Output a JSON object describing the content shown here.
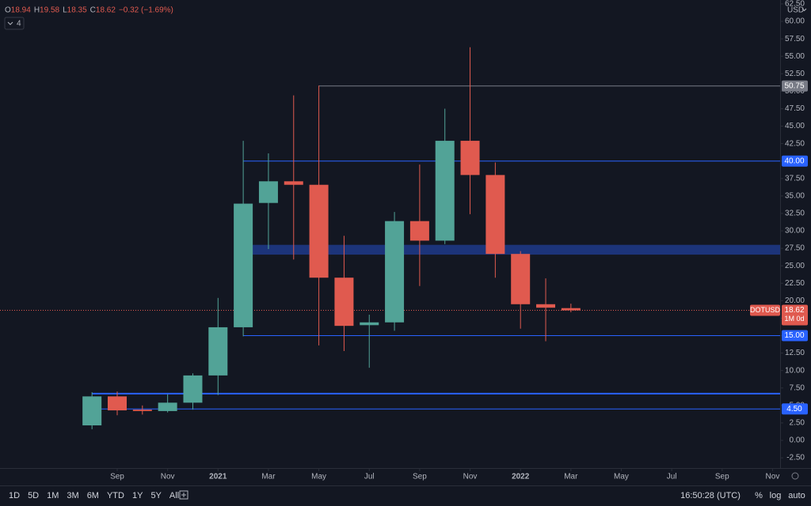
{
  "chart_data": {
    "type": "candlestick",
    "symbol": "DOTUSD",
    "interval": "1M 0d",
    "currency": "USD",
    "indicator_count": "4",
    "header": [
      {
        "k": "O",
        "v": "18.94"
      },
      {
        "k": "H",
        "v": "19.58"
      },
      {
        "k": "L",
        "v": "18.35"
      },
      {
        "k": "C",
        "v": "18.62"
      }
    ],
    "header_change": "−0.32 (−1.69%)",
    "x": [
      0,
      1,
      2,
      3,
      4,
      5,
      6,
      7,
      8,
      9,
      10,
      11,
      12,
      13,
      14,
      15,
      16,
      17,
      18,
      19
    ],
    "open": [
      2.15,
      6.3,
      4.4,
      4.2,
      5.4,
      9.3,
      16.2,
      34.0,
      37.1,
      36.6,
      23.3,
      16.5,
      16.9,
      31.4,
      28.6,
      42.9,
      38.0,
      26.7,
      19.5,
      18.94
    ],
    "high": [
      6.9,
      7.0,
      5.0,
      6.6,
      9.6,
      20.4,
      42.9,
      41.1,
      49.4,
      50.8,
      29.3,
      18.0,
      32.7,
      39.5,
      47.5,
      56.3,
      39.8,
      27.1,
      23.2,
      19.58
    ],
    "low": [
      1.6,
      3.6,
      3.7,
      4.0,
      4.4,
      6.5,
      14.9,
      27.4,
      25.9,
      13.6,
      12.8,
      10.4,
      15.7,
      22.1,
      28.1,
      32.4,
      23.3,
      16.0,
      14.2,
      18.35
    ],
    "close": [
      6.3,
      4.3,
      4.2,
      5.4,
      9.3,
      16.2,
      33.9,
      37.1,
      36.6,
      23.3,
      16.4,
      16.9,
      31.4,
      28.6,
      42.9,
      38.0,
      26.7,
      19.5,
      19.0,
      18.62
    ],
    "up_color": "#52a397",
    "down_color": "#e05a4f",
    "last_price": 18.62,
    "levels": [
      {
        "value": 50.75,
        "start": 9,
        "color": "#787b86",
        "label": "50.75"
      },
      {
        "value": 40,
        "start": 6,
        "color": "#2962ff",
        "label": "40.00"
      },
      {
        "value": 15,
        "start": 6,
        "color": "#2962ff",
        "label": "15.00"
      },
      {
        "value": 4.5,
        "start": 0,
        "color": "#2962ff",
        "label": "4.50"
      },
      {
        "value": 6.7,
        "start": 0,
        "color": "#2962ff"
      }
    ],
    "zone": {
      "low": 26.6,
      "high": 28.0,
      "start": 6,
      "color": "#1e3a8a"
    },
    "xlim": [
      -3.65,
      27.3
    ],
    "ylim": [
      -3.96,
      63.06
    ],
    "xticks": [
      {
        "value": 1,
        "label": "Sep"
      },
      {
        "value": 3,
        "label": "Nov"
      },
      {
        "value": 5,
        "label": "2021"
      },
      {
        "value": 7,
        "label": "Mar"
      },
      {
        "value": 9,
        "label": "May"
      },
      {
        "value": 11,
        "label": "Jul"
      },
      {
        "value": 13,
        "label": "Sep"
      },
      {
        "value": 15,
        "label": "Nov"
      },
      {
        "value": 17,
        "label": "2022"
      },
      {
        "value": 19,
        "label": "Mar"
      },
      {
        "value": 21,
        "label": "May"
      },
      {
        "value": 23,
        "label": "Jul"
      },
      {
        "value": 25,
        "label": "Sep"
      },
      {
        "value": 27,
        "label": "Nov"
      }
    ],
    "yticks": [
      {
        "value": -2.5,
        "label": "-2.50"
      },
      {
        "value": 0,
        "label": "0.00"
      },
      {
        "value": 2.5,
        "label": "2.50"
      },
      {
        "value": 5,
        "label": "5.00"
      },
      {
        "value": 7.5,
        "label": "7.50"
      },
      {
        "value": 10,
        "label": "10.00"
      },
      {
        "value": 12.5,
        "label": "12.50"
      },
      {
        "value": 15,
        "label": "15.00"
      },
      {
        "value": 17.5,
        "label": "17.50"
      },
      {
        "value": 20,
        "label": "20.00"
      },
      {
        "value": 22.5,
        "label": "22.50"
      },
      {
        "value": 25,
        "label": "25.00"
      },
      {
        "value": 27.5,
        "label": "27.50"
      },
      {
        "value": 30,
        "label": "30.00"
      },
      {
        "value": 32.5,
        "label": "32.50"
      },
      {
        "value": 35,
        "label": "35.00"
      },
      {
        "value": 37.5,
        "label": "37.50"
      },
      {
        "value": 40,
        "label": "40.00"
      },
      {
        "value": 42.5,
        "label": "42.50"
      },
      {
        "value": 45,
        "label": "45.00"
      },
      {
        "value": 47.5,
        "label": "47.50"
      },
      {
        "value": 50,
        "label": "50.00"
      },
      {
        "value": 52.5,
        "label": "52.50"
      },
      {
        "value": 55,
        "label": "55.00"
      },
      {
        "value": 57.5,
        "label": "57.50"
      },
      {
        "value": 60,
        "label": "60.00"
      },
      {
        "value": 62.5,
        "label": "62.50"
      }
    ],
    "grid": false
  },
  "toolbar": {
    "ranges": [
      "1D",
      "5D",
      "1M",
      "3M",
      "6M",
      "YTD",
      "1Y",
      "5Y",
      "All"
    ],
    "time": "16:50:28 (UTC)",
    "options": [
      "%",
      "log",
      "auto"
    ]
  }
}
